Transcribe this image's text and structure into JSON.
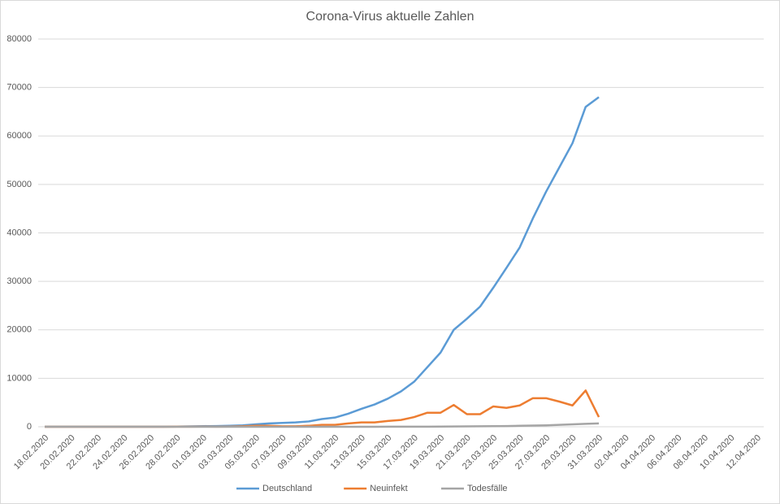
{
  "chart_data": {
    "type": "line",
    "title": "Corona-Virus aktuelle Zahlen",
    "categories": [
      "18.02.2020",
      null,
      "20.02.2020",
      null,
      "22.02.2020",
      null,
      "24.02.2020",
      null,
      "26.02.2020",
      null,
      "28.02.2020",
      null,
      "01.03.2020",
      null,
      "03.03.2020",
      null,
      "05.03.2020",
      null,
      "07.03.2020",
      null,
      "09.03.2020",
      null,
      "11.03.2020",
      null,
      "13.03.2020",
      null,
      "15.03.2020",
      null,
      "17.03.2020",
      null,
      "19.03.2020",
      null,
      "21.03.2020",
      null,
      "23.03.2020",
      null,
      "25.03.2020",
      null,
      "27.03.2020",
      null,
      "29.03.2020",
      null,
      "31.03.2020",
      null,
      "02.04.2020",
      null,
      "04.04.2020",
      null,
      "06.04.2020",
      null,
      "08.04.2020",
      null,
      "10.04.2020",
      null,
      "12.04.2020"
    ],
    "series": [
      {
        "name": "Deutschland",
        "color": "#5b9bd5",
        "values": [
          16,
          16,
          16,
          16,
          16,
          16,
          16,
          18,
          21,
          26,
          50,
          80,
          130,
          150,
          200,
          300,
          500,
          700,
          800,
          900,
          1100,
          1600,
          1900,
          2700,
          3700,
          4600,
          5800,
          7300,
          9300,
          12300,
          15300,
          20000,
          22300,
          24800,
          28700,
          32800,
          37000,
          43000,
          48500,
          53500,
          58500,
          66000,
          68000,
          null,
          null,
          null,
          null,
          null,
          null,
          null,
          null,
          null,
          null,
          null,
          null
        ]
      },
      {
        "name": "Neuinfekt",
        "color": "#ed7d31",
        "values": [
          0,
          0,
          0,
          0,
          0,
          0,
          0,
          2,
          3,
          5,
          24,
          30,
          50,
          20,
          50,
          100,
          200,
          200,
          100,
          100,
          200,
          400,
          400,
          700,
          900,
          900,
          1200,
          1400,
          2000,
          2900,
          2900,
          4500,
          2600,
          2600,
          4200,
          3900,
          4400,
          5900,
          5900,
          5200,
          4400,
          7500,
          2000,
          null,
          null,
          null,
          null,
          null,
          null,
          null,
          null,
          null,
          null,
          null,
          null
        ]
      },
      {
        "name": "Todesfälle",
        "color": "#a5a5a5",
        "values": [
          0,
          0,
          0,
          0,
          0,
          0,
          0,
          0,
          0,
          0,
          0,
          0,
          0,
          0,
          0,
          0,
          0,
          0,
          0,
          0,
          2,
          2,
          3,
          6,
          8,
          10,
          15,
          20,
          25,
          30,
          45,
          70,
          90,
          100,
          120,
          150,
          200,
          250,
          300,
          400,
          500,
          600,
          700,
          null,
          null,
          null,
          null,
          null,
          null,
          null,
          null,
          null,
          null,
          null,
          null
        ]
      }
    ],
    "ylim": [
      0,
      80000
    ],
    "yticks": [
      0,
      10000,
      20000,
      30000,
      40000,
      50000,
      60000,
      70000,
      80000
    ],
    "grid": true,
    "legend": "bottom"
  }
}
